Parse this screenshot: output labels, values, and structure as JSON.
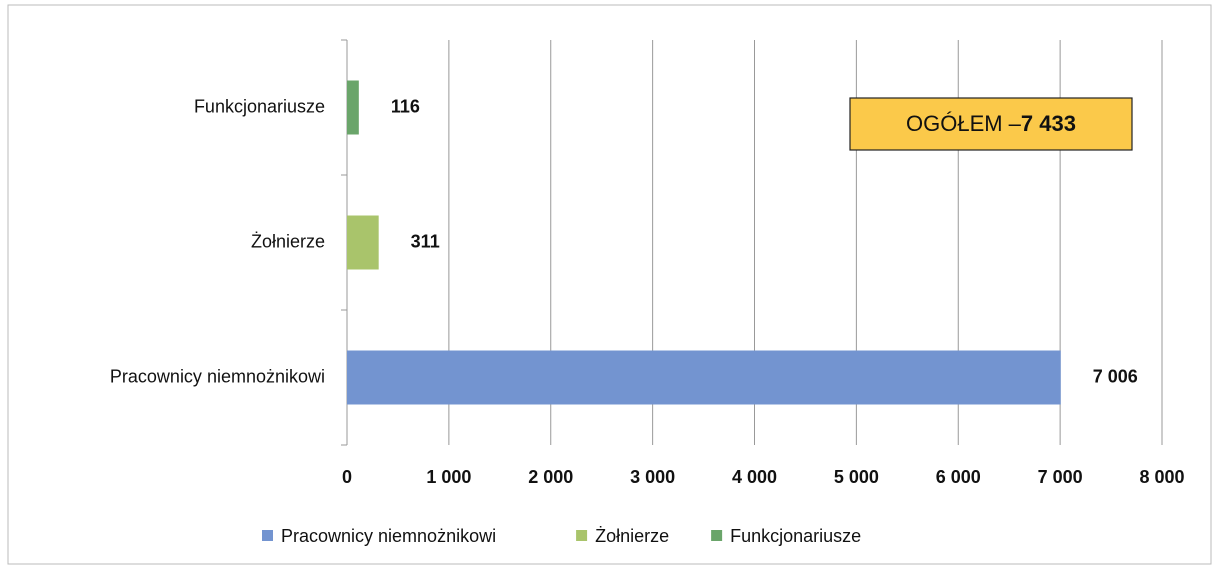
{
  "chart_data": {
    "type": "bar",
    "orientation": "horizontal",
    "categories": [
      "Pracownicy niemnożnikowi",
      "Żołnierze",
      "Funkcjonariusze"
    ],
    "values": [
      7006,
      311,
      116
    ],
    "value_labels": [
      "7 006",
      "311",
      "116"
    ],
    "colors": [
      "#7394d0",
      "#a9c46b",
      "#6aa56a"
    ],
    "xlim": [
      0,
      8000
    ],
    "xticks": [
      0,
      {
        "value": 1000,
        "label": "1 000"
      },
      {
        "value": 2000,
        "label": "2 000"
      },
      {
        "value": 3000,
        "label": "3 000"
      },
      {
        "value": 4000,
        "label": "4 000"
      },
      {
        "value": 5000,
        "label": "5 000"
      },
      {
        "value": 6000,
        "label": "6 000"
      },
      {
        "value": 7000,
        "label": "7 000"
      },
      {
        "value": 8000,
        "label": "8 000"
      }
    ],
    "grid": true,
    "legend": "bottom",
    "annotation": [
      "OGÓŁEM –",
      "7 433"
    ]
  }
}
